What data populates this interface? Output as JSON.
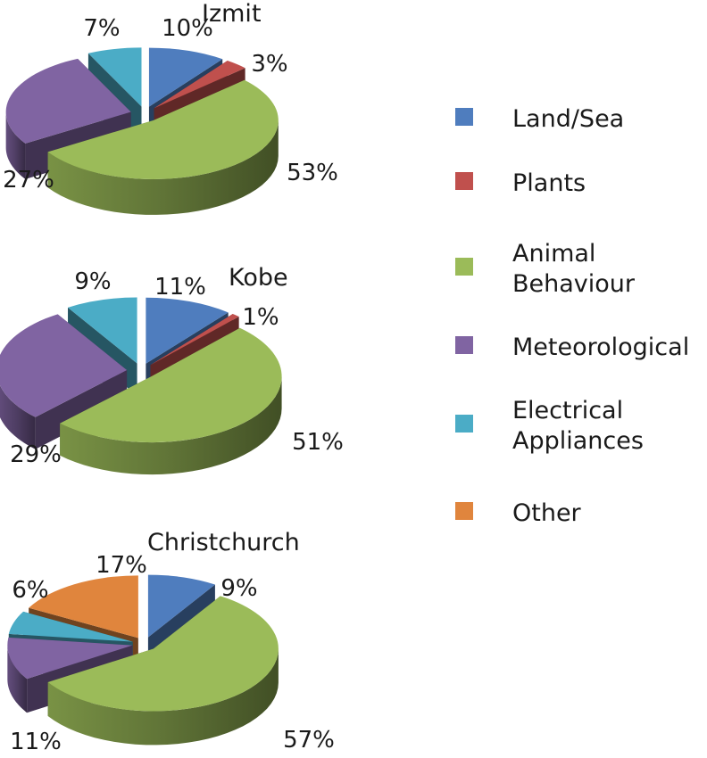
{
  "chart_data": [
    {
      "type": "pie",
      "title": "Izmit",
      "categories": [
        "Land/Sea",
        "Plants",
        "Animal Behaviour",
        "Meteorological",
        "Electrical Appliances"
      ],
      "values": [
        10,
        3,
        53,
        27,
        7
      ],
      "value_labels": [
        "10%",
        "3%",
        "53%",
        "27%",
        "7%"
      ]
    },
    {
      "type": "pie",
      "title": "Kobe",
      "categories": [
        "Land/Sea",
        "Plants",
        "Animal Behaviour",
        "Meteorological",
        "Electrical Appliances"
      ],
      "values": [
        11,
        1,
        51,
        29,
        9
      ],
      "value_labels": [
        "11%",
        "1%",
        "51%",
        "29%",
        "9%"
      ]
    },
    {
      "type": "pie",
      "title": "Christchurch",
      "categories": [
        "Land/Sea",
        "Animal Behaviour",
        "Meteorological",
        "Electrical Appliances",
        "Other"
      ],
      "values": [
        9,
        57,
        11,
        6,
        17
      ],
      "value_labels": [
        "9%",
        "57%",
        "11%",
        "6%",
        "17%"
      ]
    }
  ],
  "legend": {
    "position": "right",
    "entries": [
      {
        "lines": [
          "Land/Sea"
        ],
        "color": "#4F7DBE"
      },
      {
        "lines": [
          "Plants"
        ],
        "color": "#C0504D"
      },
      {
        "lines": [
          "Animal",
          "Behaviour"
        ],
        "color": "#9BBB59"
      },
      {
        "lines": [
          "Meteorological"
        ],
        "color": "#8064A2"
      },
      {
        "lines": [
          "Electrical",
          "Appliances"
        ],
        "color": "#4BACC6"
      },
      {
        "lines": [
          "Other"
        ],
        "color": "#E0853D"
      }
    ]
  },
  "colors": {
    "Land/Sea": "#4F7DBE",
    "Plants": "#C0504D",
    "Animal Behaviour": "#9BBB59",
    "Meteorological": "#8064A2",
    "Electrical Appliances": "#4BACC6",
    "Other": "#E0853D"
  },
  "style": {
    "pie_3d": true,
    "exploded": true
  }
}
